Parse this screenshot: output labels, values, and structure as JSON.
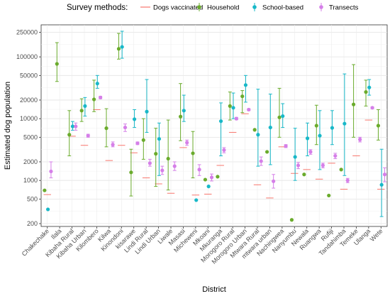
{
  "chart_data": {
    "type": "scatter",
    "xlabel": "District",
    "ylabel": "Estimated dog population",
    "y_scale": "log",
    "ylim": [
      180,
      330000
    ],
    "y_ticks": [
      "200",
      "500",
      "1000",
      "2000",
      "5000",
      "10000",
      "20000",
      "50000",
      "100000",
      "250000"
    ],
    "y_tick_values": [
      200,
      500,
      1000,
      2000,
      5000,
      10000,
      20000,
      50000,
      100000,
      250000
    ],
    "grid": true,
    "legend": {
      "title": "Survey methods:",
      "position": "top",
      "entries": [
        "Dogs vaccinated",
        "Household",
        "School-based",
        "Transects"
      ]
    },
    "colors": {
      "Dogs vaccinated": "#f8766d",
      "Household": "#6aab2c",
      "School-based": "#18b8c8",
      "Transects": "#d57fe8"
    },
    "categories": [
      "Chakechake",
      "Ilala",
      "Kibaha Rural",
      "Kibaha Urban",
      "Kilombero",
      "Kilwa",
      "Kinondoni",
      "kisarawe",
      "Lindi Rural",
      "Lindi Urban",
      "Liwale",
      "Masasi",
      "Micheweni",
      "Mkoani",
      "Mkuranga",
      "Morogoro Rural",
      "Morogoro Urban",
      "Mtwara Rural",
      "mtwara urban",
      "Nachingwea",
      "Nanyumbu",
      "Newala",
      "Ruangwa",
      "Rufiji",
      "Tandahimba",
      "Temeke",
      "Ulanga",
      "Wete"
    ],
    "series": [
      {
        "name": "Dogs vaccinated",
        "values": [
          590,
          null,
          5200,
          3700,
          14000,
          2100,
          3700,
          2800,
          1100,
          880,
          620,
          3400,
          580,
          600,
          1750,
          6000,
          12000,
          850,
          520,
          3500,
          1300,
          1500,
          1050,
          1900,
          720,
          2500,
          9500,
          720
        ]
      },
      {
        "name": "Household",
        "values": [
          690,
          77000,
          5500,
          13500,
          20500,
          7000,
          135000,
          1350,
          4500,
          2700,
          2250,
          10800,
          2750,
          1030,
          1150,
          16000,
          23000,
          6600,
          2900,
          10500,
          230,
          1250,
          7700,
          570,
          1500,
          17000,
          27000,
          7700
        ],
        "lower": [
          null,
          40000,
          2500,
          9000,
          13000,
          3500,
          92000,
          560,
          2200,
          800,
          700,
          4400,
          1100,
          null,
          null,
          9500,
          12500,
          null,
          null,
          5000,
          null,
          null,
          3800,
          null,
          null,
          5000,
          16000,
          4500
        ],
        "upper": [
          null,
          170000,
          13500,
          21000,
          42000,
          14500,
          240000,
          3200,
          10000,
          7000,
          9500,
          37000,
          6200,
          null,
          null,
          27000,
          28500,
          null,
          null,
          31000,
          null,
          null,
          16500,
          null,
          null,
          75000,
          42000,
          14000
        ]
      },
      {
        "name": "School-based",
        "values": [
          340,
          null,
          7500,
          16000,
          37000,
          null,
          145000,
          9800,
          13000,
          4700,
          null,
          13500,
          480,
          800,
          9100,
          15000,
          35000,
          5500,
          7200,
          11000,
          2400,
          4800,
          5300,
          7100,
          8300,
          null,
          32000,
          850
        ],
        "lower": [
          null,
          null,
          6500,
          11000,
          31000,
          null,
          95000,
          7200,
          6000,
          1200,
          null,
          9000,
          null,
          null,
          2500,
          10000,
          18500,
          1700,
          1800,
          7200,
          1000,
          2500,
          1500,
          3800,
          1200,
          null,
          24000,
          260
        ],
        "upper": [
          null,
          null,
          9000,
          22000,
          50000,
          null,
          260000,
          14000,
          43000,
          8500,
          null,
          24000,
          null,
          null,
          18000,
          26000,
          50000,
          30000,
          25000,
          17500,
          7000,
          8500,
          13500,
          13500,
          53000,
          null,
          43000,
          3200
        ]
      },
      {
        "name": "Transects",
        "values": [
          1400,
          null,
          7500,
          5300,
          22000,
          3800,
          7200,
          4000,
          1900,
          1450,
          1700,
          4100,
          1500,
          1120,
          3100,
          10000,
          14000,
          2050,
          970,
          3600,
          1750,
          2900,
          1750,
          2500,
          1000,
          4600,
          15000,
          1250
        ],
        "lower": [
          1100,
          null,
          6500,
          5000,
          21000,
          3500,
          6200,
          3800,
          1700,
          1250,
          1450,
          3700,
          1200,
          980,
          2800,
          9600,
          13500,
          1750,
          750,
          3400,
          1550,
          2650,
          1600,
          2250,
          920,
          4200,
          14500,
          950
        ],
        "upper": [
          2000,
          null,
          8500,
          5600,
          23000,
          4200,
          8200,
          4200,
          2200,
          1700,
          2000,
          4500,
          1800,
          1270,
          3400,
          10500,
          14500,
          2400,
          1250,
          3800,
          1950,
          3150,
          1900,
          2750,
          1080,
          5000,
          15500,
          1600
        ]
      }
    ]
  }
}
